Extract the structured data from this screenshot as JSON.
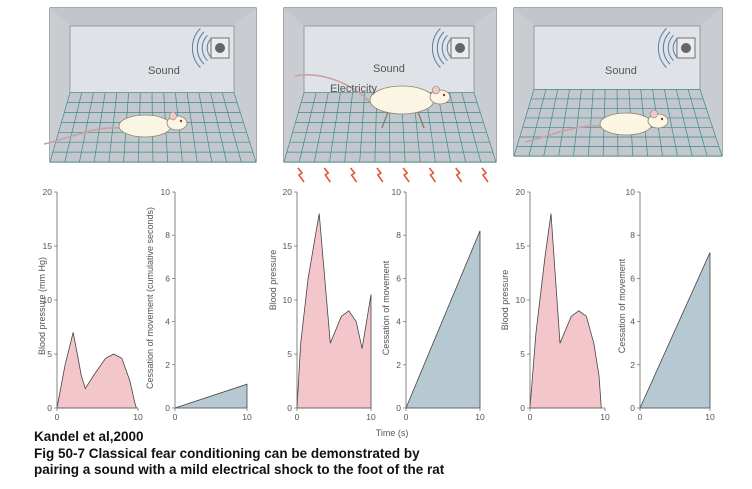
{
  "caption": {
    "source": "Kandel et al,2000",
    "line1": "Fig 50-7 Classical fear conditioning can be demonstrated by",
    "line2": "pairing a sound with a mild electrical shock to the foot of the rat"
  },
  "panels": [
    {
      "scene": {
        "sound_label": "Sound",
        "shock_label": ""
      },
      "bp_chart": {
        "ylabel": "Blood pressure (mm Hg)",
        "yticks": [
          "0",
          "5",
          "10",
          "15",
          "20"
        ],
        "xticks": [
          "0",
          "10"
        ],
        "ymax": 20,
        "curve": [
          [
            0,
            0
          ],
          [
            1,
            4
          ],
          [
            2,
            7
          ],
          [
            2.5,
            5
          ],
          [
            3,
            3
          ],
          [
            3.5,
            1.8
          ],
          [
            4.5,
            3
          ],
          [
            6,
            4.6
          ],
          [
            7,
            5
          ],
          [
            8,
            4.6
          ],
          [
            9,
            2.5
          ],
          [
            9.6,
            0.5
          ],
          [
            9.8,
            0
          ]
        ]
      },
      "cm_chart": {
        "ylabel": "Cessation of movement (cumulative seconds)",
        "yticks": [
          "0",
          "2",
          "4",
          "6",
          "8",
          "10"
        ],
        "xticks": [
          "0",
          "10"
        ],
        "ymax": 10,
        "end_value": 1.1
      }
    },
    {
      "scene": {
        "sound_label": "Sound",
        "shock_label": "Electricity"
      },
      "bp_chart": {
        "ylabel": "Blood pressure",
        "yticks": [
          "0",
          "5",
          "10",
          "15",
          "20"
        ],
        "xticks": [
          "0",
          "10"
        ],
        "ymax": 20,
        "curve": [
          [
            0,
            0
          ],
          [
            0.5,
            6
          ],
          [
            1.5,
            12
          ],
          [
            3,
            18
          ],
          [
            4.5,
            6
          ],
          [
            6,
            8.5
          ],
          [
            7,
            9
          ],
          [
            8,
            8
          ],
          [
            8.8,
            5.5
          ],
          [
            10,
            10.5
          ],
          [
            10,
            0
          ]
        ]
      },
      "cm_chart": {
        "ylabel": "Cessation of movement",
        "yticks": [
          "0",
          "2",
          "4",
          "6",
          "8",
          "10"
        ],
        "xticks": [
          "0",
          "10"
        ],
        "ymax": 10,
        "end_value": 8.2
      },
      "time_label": "Time (s)"
    },
    {
      "scene": {
        "sound_label": "Sound",
        "shock_label": ""
      },
      "bp_chart": {
        "ylabel": "Blood pressure",
        "yticks": [
          "0",
          "5",
          "10",
          "15",
          "20"
        ],
        "xticks": [
          "0",
          "10"
        ],
        "ymax": 20,
        "curve": [
          [
            0,
            0
          ],
          [
            0.8,
            7
          ],
          [
            2,
            14
          ],
          [
            2.8,
            18
          ],
          [
            4,
            6
          ],
          [
            5.5,
            8.5
          ],
          [
            6.5,
            9
          ],
          [
            7.5,
            8.5
          ],
          [
            8.5,
            6
          ],
          [
            9.2,
            3
          ],
          [
            9.5,
            0
          ]
        ]
      },
      "cm_chart": {
        "ylabel": "Cessation of movement",
        "yticks": [
          "0",
          "2",
          "4",
          "6",
          "8",
          "10"
        ],
        "xticks": [
          "0",
          "10"
        ],
        "ymax": 10,
        "end_value": 7.2
      }
    }
  ],
  "colors": {
    "bp_fill": "#f3c6cc",
    "cm_fill": "#b6c9d2",
    "box_wall": "#d4d7dc",
    "box_floor": "#c3c8ce",
    "grid": "#3f8a88",
    "shock": "#e0583a",
    "rat_body": "#fbf6e4"
  }
}
